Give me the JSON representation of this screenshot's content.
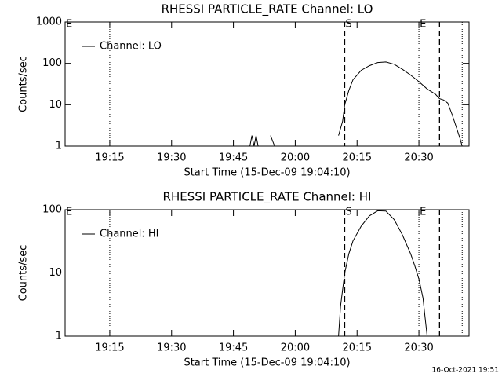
{
  "chart_data": [
    {
      "type": "line",
      "title": "RHESSI PARTICLE_RATE Channel: LO",
      "ylabel": "Counts/sec",
      "xlabel": "Start Time (15-Dec-09 19:04:10)",
      "ylog": true,
      "ylim": [
        1,
        1000
      ],
      "yticks": [
        1,
        10,
        100,
        1000
      ],
      "xlim": [
        "19:04:10",
        "20:42:10"
      ],
      "xticks": [
        "19:15",
        "19:30",
        "19:45",
        "20:00",
        "20:15",
        "20:30"
      ],
      "legend": "upper left",
      "vlines": [
        {
          "x": "19:15:00",
          "style": "dotted"
        },
        {
          "x": "20:12:00",
          "style": "dashed"
        },
        {
          "x": "20:30:00",
          "style": "dotted"
        },
        {
          "x": "20:35:00",
          "style": "dashed"
        },
        {
          "x": "20:40:30",
          "style": "dotted"
        }
      ],
      "flags": [
        {
          "x": "19:04:10",
          "label": "E"
        },
        {
          "x": "20:12:00",
          "label": "S"
        },
        {
          "x": "20:30:00",
          "label": "E"
        }
      ],
      "x": [
        "19:49:00",
        "19:49:30",
        "19:50:00",
        "19:50:30",
        "19:51:00",
        "19:53:00",
        "19:54:00",
        "19:55:00",
        "20:10:00",
        "20:10:30",
        "20:11:30",
        "20:12:00",
        "20:13:00",
        "20:14:00",
        "20:16:00",
        "20:18:00",
        "20:20:00",
        "20:22:00",
        "20:24:00",
        "20:26:00",
        "20:28:00",
        "20:30:00",
        "20:32:00",
        "20:34:00",
        "20:35:00",
        "20:36:00",
        "20:37:00",
        "20:38:00",
        "20:39:00",
        "20:40:00",
        "20:40:30"
      ],
      "series": [
        {
          "name": "Channel: LO",
          "color": "#000000",
          "values": [
            1,
            1.8,
            1,
            1.8,
            1,
            null,
            1.8,
            1,
            null,
            1.8,
            4,
            10,
            22,
            40,
            68,
            88,
            105,
            108,
            95,
            72,
            52,
            36,
            24,
            18,
            14,
            13,
            11,
            6,
            3,
            1.5,
            1
          ]
        }
      ]
    },
    {
      "type": "line",
      "title": "RHESSI PARTICLE_RATE Channel: HI",
      "ylabel": "Counts/sec",
      "xlabel": "Start Time (15-Dec-09 19:04:10)",
      "ylog": true,
      "ylim": [
        1,
        100
      ],
      "yticks": [
        1,
        10,
        100
      ],
      "xlim": [
        "19:04:10",
        "20:42:10"
      ],
      "xticks": [
        "19:15",
        "19:30",
        "19:45",
        "20:00",
        "20:15",
        "20:30"
      ],
      "legend": "upper left",
      "vlines": [
        {
          "x": "19:15:00",
          "style": "dotted"
        },
        {
          "x": "20:12:00",
          "style": "dashed"
        },
        {
          "x": "20:30:00",
          "style": "dotted"
        },
        {
          "x": "20:35:00",
          "style": "dashed"
        },
        {
          "x": "20:40:30",
          "style": "dotted"
        }
      ],
      "flags": [
        {
          "x": "19:04:10",
          "label": "E"
        },
        {
          "x": "20:12:00",
          "label": "S"
        },
        {
          "x": "20:30:00",
          "label": "E"
        }
      ],
      "x": [
        "20:10:30",
        "20:11:00",
        "20:12:00",
        "20:13:00",
        "20:14:00",
        "20:16:00",
        "20:18:00",
        "20:20:00",
        "20:22:00",
        "20:24:00",
        "20:26:00",
        "20:28:00",
        "20:29:00",
        "20:30:00",
        "20:31:00",
        "20:31:30",
        "20:32:00"
      ],
      "series": [
        {
          "name": "Channel: HI",
          "color": "#000000",
          "values": [
            1,
            3,
            10,
            20,
            32,
            55,
            80,
            96,
            95,
            70,
            40,
            20,
            13,
            8,
            4,
            2,
            1
          ]
        }
      ]
    }
  ],
  "footer": "16-Oct-2021 19:51"
}
